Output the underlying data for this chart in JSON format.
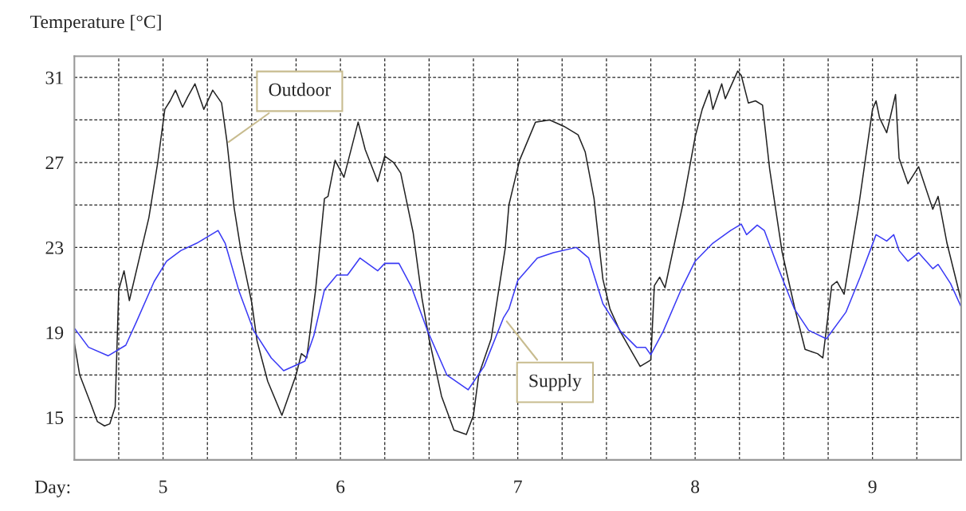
{
  "chart_data": {
    "type": "line",
    "ylabel": "Temperature [°C]",
    "xlabel": "Day:",
    "xlim": [
      4.5,
      9.5
    ],
    "xticks": [
      {
        "value": 4.5,
        "label": null
      },
      {
        "value": 4.75,
        "label": null
      },
      5,
      {
        "value": 5.25,
        "label": null
      },
      {
        "value": 5.5,
        "label": null
      },
      {
        "value": 5.75,
        "label": null
      },
      6,
      {
        "value": 6.25,
        "label": null
      },
      {
        "value": 6.5,
        "label": null
      },
      {
        "value": 6.75,
        "label": null
      },
      7,
      {
        "value": 7.25,
        "label": null
      },
      {
        "value": 7.5,
        "label": null
      },
      {
        "value": 7.75,
        "label": null
      },
      8,
      {
        "value": 8.25,
        "label": null
      },
      {
        "value": 8.5,
        "label": null
      },
      {
        "value": 8.75,
        "label": null
      },
      9,
      {
        "value": 9.25,
        "label": null
      },
      {
        "value": 9.5,
        "label": null
      }
    ],
    "ylim": [
      13,
      32
    ],
    "yticks": [
      {
        "value": 13,
        "label": null
      },
      15,
      {
        "value": 17,
        "label": null
      },
      19,
      {
        "value": 21,
        "label": null
      },
      23,
      {
        "value": 25,
        "label": null
      },
      27,
      {
        "value": 29,
        "label": null
      },
      31
    ],
    "grid": true,
    "line_style": "solid",
    "marker": "none",
    "legend": false,
    "annotations": [
      {
        "text": "Outdoor",
        "x": 5.36,
        "y": 27.9
      },
      {
        "text": "Supply",
        "x": 6.93,
        "y": 19.6
      }
    ],
    "series": [
      {
        "color": "#222222",
        "x": [
          4.5,
          4.53,
          4.59,
          4.63,
          4.67,
          4.7,
          4.73,
          4.75,
          4.78,
          4.81,
          4.92,
          4.97,
          5.01,
          5.04,
          5.07,
          5.11,
          5.14,
          5.18,
          5.23,
          5.28,
          5.33,
          5.36,
          5.4,
          5.44,
          5.5,
          5.53,
          5.59,
          5.67,
          5.75,
          5.78,
          5.81,
          5.86,
          5.91,
          5.93,
          5.97,
          6.02,
          6.1,
          6.14,
          6.21,
          6.25,
          6.3,
          6.34,
          6.41,
          6.46,
          6.5,
          6.57,
          6.64,
          6.71,
          6.75,
          6.78,
          6.85,
          6.93,
          6.95,
          7.01,
          7.1,
          7.18,
          7.26,
          7.34,
          7.38,
          7.43,
          7.48,
          7.52,
          7.58,
          7.69,
          7.75,
          7.77,
          7.8,
          7.83,
          7.93,
          8.0,
          8.04,
          8.08,
          8.1,
          8.15,
          8.17,
          8.24,
          8.26,
          8.3,
          8.34,
          8.38,
          8.42,
          8.49,
          8.56,
          8.62,
          8.69,
          8.72,
          8.77,
          8.8,
          8.84,
          8.92,
          9.0,
          9.02,
          9.04,
          9.08,
          9.13,
          9.15,
          9.2,
          9.26,
          9.34,
          9.37,
          9.42,
          9.5
        ],
        "values": [
          18.5,
          17.0,
          15.7,
          14.8,
          14.6,
          14.7,
          15.5,
          21.0,
          21.9,
          20.5,
          24.4,
          27.0,
          29.5,
          29.9,
          30.4,
          29.6,
          30.1,
          30.7,
          29.5,
          30.4,
          29.8,
          28.0,
          24.9,
          22.8,
          20.4,
          18.6,
          16.7,
          15.1,
          17.0,
          18.0,
          17.8,
          21.0,
          25.3,
          25.4,
          27.1,
          26.3,
          28.9,
          27.6,
          26.1,
          27.3,
          27.0,
          26.5,
          23.7,
          20.6,
          18.7,
          16.0,
          14.4,
          14.2,
          15.1,
          17.0,
          18.7,
          23.0,
          25.0,
          27.1,
          28.9,
          29.0,
          28.7,
          28.3,
          27.5,
          25.3,
          21.5,
          20.1,
          19.0,
          17.4,
          17.7,
          21.2,
          21.6,
          21.1,
          25.0,
          28.2,
          29.5,
          30.4,
          29.5,
          30.7,
          30.0,
          31.3,
          31.1,
          29.8,
          29.9,
          29.7,
          26.7,
          22.8,
          20.2,
          18.2,
          18.0,
          17.8,
          21.2,
          21.4,
          20.8,
          24.8,
          29.5,
          29.9,
          29.1,
          28.4,
          30.2,
          27.2,
          26.0,
          26.8,
          24.8,
          25.4,
          23.2,
          20.5
        ]
      },
      {
        "color": "#3a3af5",
        "x": [
          4.5,
          4.58,
          4.69,
          4.79,
          4.85,
          4.95,
          5.02,
          5.1,
          5.19,
          5.31,
          5.35,
          5.43,
          5.51,
          5.61,
          5.68,
          5.8,
          5.85,
          5.91,
          5.98,
          6.04,
          6.11,
          6.21,
          6.25,
          6.33,
          6.4,
          6.49,
          6.6,
          6.72,
          6.81,
          6.92,
          6.95,
          7.0,
          7.11,
          7.2,
          7.33,
          7.4,
          7.48,
          7.58,
          7.67,
          7.72,
          7.75,
          7.82,
          7.92,
          8.0,
          8.1,
          8.2,
          8.26,
          8.29,
          8.35,
          8.39,
          8.47,
          8.56,
          8.64,
          8.74,
          8.85,
          8.93,
          9.02,
          9.08,
          9.12,
          9.15,
          9.2,
          9.26,
          9.34,
          9.37,
          9.44,
          9.5
        ],
        "values": [
          19.2,
          18.3,
          17.9,
          18.4,
          19.5,
          21.4,
          22.35,
          22.85,
          23.2,
          23.8,
          23.2,
          20.9,
          19.1,
          17.8,
          17.2,
          17.65,
          18.85,
          21.0,
          21.7,
          21.7,
          22.5,
          21.9,
          22.25,
          22.25,
          21.15,
          19.1,
          17.0,
          16.3,
          17.4,
          19.7,
          20.1,
          21.45,
          22.5,
          22.75,
          23.0,
          22.5,
          20.35,
          19.05,
          18.3,
          18.3,
          17.95,
          19.05,
          21.0,
          22.35,
          23.2,
          23.8,
          24.1,
          23.6,
          24.05,
          23.8,
          22.0,
          20.1,
          19.1,
          18.7,
          19.95,
          21.6,
          23.6,
          23.3,
          23.6,
          22.85,
          22.35,
          22.75,
          22.0,
          22.2,
          21.3,
          20.2
        ]
      }
    ]
  }
}
